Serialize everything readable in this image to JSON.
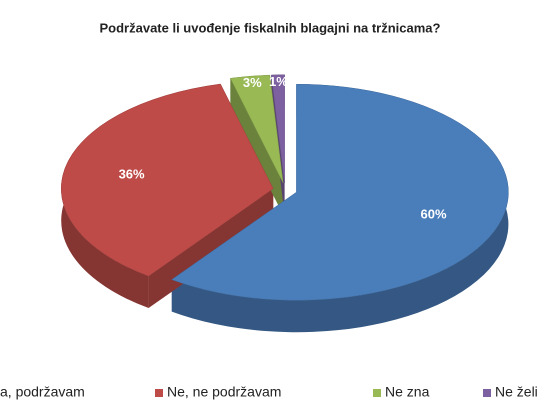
{
  "chart_data": {
    "type": "pie",
    "title": "Podržavate li uvođenje fiskalnih blagajni na tržnicama?",
    "categories": [
      "a, podržavam",
      "Ne, ne podržavam",
      "Ne zna",
      "Ne želi"
    ],
    "values": [
      60,
      36,
      3,
      1
    ],
    "value_labels": [
      "60%",
      "36%",
      "3%",
      "1%"
    ],
    "colors": [
      "#4a7ebb",
      "#be4b48",
      "#98b954",
      "#7d60a0"
    ],
    "legend": "bottom"
  }
}
